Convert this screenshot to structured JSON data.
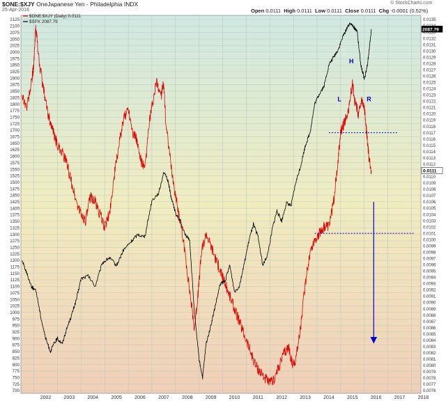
{
  "header": {
    "symbol": "$ONE:$XJY",
    "title": "OneJapanese Yen - Philadelphia INDX",
    "date": "25-Apr-2016",
    "open_label": "Open",
    "open_value": "0.0111",
    "high_label": "High",
    "high_value": "0.0111",
    "low_label": "Low",
    "low_value": "0.0111",
    "close_label": "Close",
    "close_value": "0.0111",
    "chg_label": "Chg",
    "chg_value": "-0.0001 (0.52%)",
    "brand": "© StockCharts.com"
  },
  "colors": {
    "xjy": "#e00000",
    "spx": "#000000",
    "annotation": "#0000cc",
    "bg_top": "#cfe8e2",
    "bg_mid": "#f0ecc0",
    "bg_bottom": "#f0cfb8"
  },
  "chart_data": {
    "type": "line",
    "x_ticks": [
      "2002",
      "2003",
      "2004",
      "2005",
      "2006",
      "2007",
      "2008",
      "2009",
      "2010",
      "2011",
      "2012",
      "2013",
      "2014",
      "2015",
      "2016",
      "2017",
      "2018"
    ],
    "left_axis": {
      "min": 700,
      "max": 2125,
      "step": 25
    },
    "right_axis": {
      "min": 0.0076,
      "max": 0.0135,
      "step": 0.0001,
      "last_label": "0.0111"
    },
    "spx_last_label": "2087.79",
    "legend": [
      {
        "key": "xjy",
        "label": "$ONE:$XJY (Daily) 0.0111"
      },
      {
        "key": "spx",
        "label": "$SPX 2087.79"
      }
    ],
    "series": [
      {
        "key": "xjy",
        "axis": "right",
        "x": [
          2001.5,
          2001.7,
          2001.9,
          2002.0,
          2002.08,
          2002.2,
          2002.4,
          2002.6,
          2002.75,
          2002.9,
          2003.0,
          2003.2,
          2003.4,
          2003.6,
          2003.8,
          2004.0,
          2004.2,
          2004.4,
          2004.6,
          2004.8,
          2005.0,
          2005.2,
          2005.4,
          2005.6,
          2005.8,
          2006.0,
          2006.2,
          2006.35,
          2006.5,
          2006.7,
          2006.9,
          2007.0,
          2007.2,
          2007.4,
          2007.5,
          2007.6,
          2007.8,
          2008.0,
          2008.2,
          2008.4,
          2008.6,
          2008.8,
          2008.95,
          2009.1,
          2009.3,
          2009.5,
          2009.7,
          2009.9,
          2010.0,
          2010.2,
          2010.4,
          2010.6,
          2010.8,
          2011.0,
          2011.2,
          2011.4,
          2011.6,
          2011.8,
          2012.0,
          2012.2,
          2012.4,
          2012.6,
          2012.8,
          2012.95,
          2013.1,
          2013.3,
          2013.5,
          2013.7,
          2013.9,
          2014.1,
          2014.3,
          2014.5,
          2014.7,
          2014.9,
          2015.0,
          2015.1,
          2015.2,
          2015.35,
          2015.5,
          2015.6,
          2015.75,
          2015.9,
          2016.0,
          2016.1,
          2016.2,
          2016.3
        ],
        "y": [
          0.0123,
          0.0121,
          0.0125,
          0.0128,
          0.0134,
          0.0129,
          0.0124,
          0.012,
          0.0118,
          0.0116,
          0.0115,
          0.0114,
          0.0112,
          0.0109,
          0.0106,
          0.0104,
          0.0103,
          0.0107,
          0.0106,
          0.0104,
          0.0102,
          0.0104,
          0.011,
          0.0115,
          0.0119,
          0.0121,
          0.0117,
          0.0116,
          0.0113,
          0.0111,
          0.0119,
          0.0121,
          0.0125,
          0.0123,
          0.0125,
          0.0118,
          0.0112,
          0.0107,
          0.0103,
          0.0098,
          0.0092,
          0.0086,
          0.0091,
          0.0098,
          0.0101,
          0.0099,
          0.0097,
          0.0095,
          0.0094,
          0.0092,
          0.009,
          0.0088,
          0.0086,
          0.0084,
          0.0082,
          0.008,
          0.0079,
          0.0078,
          0.0077,
          0.0078,
          0.008,
          0.0082,
          0.0083,
          0.008,
          0.0081,
          0.0086,
          0.0093,
          0.0098,
          0.01,
          0.0101,
          0.0102,
          0.0102,
          0.0106,
          0.0113,
          0.0117,
          0.0118,
          0.0119,
          0.0121,
          0.0125,
          0.0122,
          0.012,
          0.0122,
          0.0121,
          0.0117,
          0.0113,
          0.0111
        ]
      },
      {
        "key": "spx",
        "axis": "left",
        "x": [
          2001.5,
          2001.7,
          2001.9,
          2002.1,
          2002.3,
          2002.5,
          2002.7,
          2002.85,
          2003.0,
          2003.2,
          2003.4,
          2003.6,
          2003.8,
          2004.0,
          2004.3,
          2004.6,
          2004.9,
          2005.2,
          2005.5,
          2005.8,
          2006.1,
          2006.4,
          2006.7,
          2007.0,
          2007.3,
          2007.5,
          2007.7,
          2007.8,
          2008.0,
          2008.2,
          2008.4,
          2008.6,
          2008.8,
          2009.0,
          2009.15,
          2009.3,
          2009.5,
          2009.7,
          2009.9,
          2010.1,
          2010.3,
          2010.5,
          2010.7,
          2010.9,
          2011.1,
          2011.3,
          2011.5,
          2011.7,
          2011.9,
          2012.1,
          2012.3,
          2012.5,
          2012.7,
          2012.9,
          2013.1,
          2013.3,
          2013.5,
          2013.7,
          2013.9,
          2014.1,
          2014.3,
          2014.5,
          2014.7,
          2014.9,
          2015.1,
          2015.3,
          2015.45,
          2015.6,
          2015.7,
          2015.85,
          2016.0,
          2016.1,
          2016.2,
          2016.3
        ],
        "y": [
          1200,
          1150,
          1100,
          1080,
          980,
          900,
          850,
          880,
          900,
          880,
          940,
          990,
          1050,
          1130,
          1140,
          1100,
          1190,
          1210,
          1180,
          1240,
          1270,
          1300,
          1290,
          1430,
          1460,
          1540,
          1500,
          1450,
          1380,
          1350,
          1300,
          1280,
          1000,
          820,
          750,
          880,
          950,
          1030,
          1110,
          1120,
          1180,
          1080,
          1100,
          1180,
          1270,
          1340,
          1290,
          1180,
          1220,
          1320,
          1390,
          1350,
          1420,
          1410,
          1500,
          1560,
          1640,
          1690,
          1800,
          1840,
          1870,
          1950,
          1980,
          2010,
          2060,
          2100,
          2110,
          2090,
          2080,
          1950,
          1900,
          1930,
          2000,
          2088
        ]
      }
    ],
    "annotations": {
      "labels": [
        {
          "text": "H",
          "x": 2015.45,
          "y": 0.0128
        },
        {
          "text": "L",
          "x": 2014.95,
          "y": 0.0122
        },
        {
          "text": "R",
          "x": 2016.2,
          "y": 0.0122
        }
      ],
      "neckline_upper": {
        "x0": 2014.5,
        "x1": 2017.4,
        "y": 0.0117
      },
      "neckline_lower": {
        "x0": 2013.9,
        "x1": 2018.1,
        "y": 0.0101
      },
      "arrow": {
        "x": 2016.4,
        "y0": 0.0106,
        "y1": 0.0084
      }
    }
  }
}
